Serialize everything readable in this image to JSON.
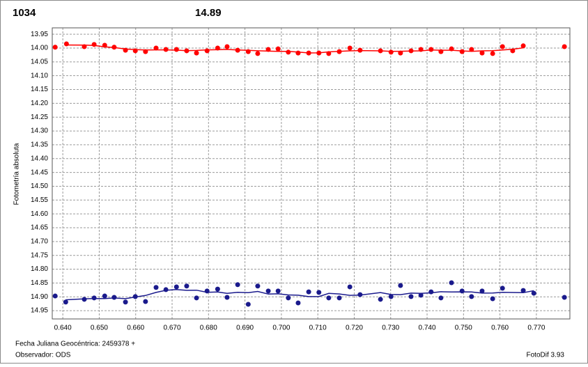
{
  "chart_data": {
    "type": "scatter",
    "title_left": "1034",
    "title_right": "14.89",
    "ylabel": "Fotometría absoluta",
    "xlabel": "Fecha Juliana Geocéntrica: 2459378 +",
    "observer": "Observador: ODS",
    "software": "FotoDif 3.93",
    "xlim": [
      0.6371,
      0.7792
    ],
    "ylim": [
      14.98,
      13.927
    ],
    "grid": true,
    "xticks": [
      {
        "value": 0.64,
        "label": "0.640"
      },
      {
        "value": 0.65,
        "label": "0.650"
      },
      {
        "value": 0.66,
        "label": "0.660"
      },
      {
        "value": 0.67,
        "label": "0.670"
      },
      {
        "value": 0.68,
        "label": "0.680"
      },
      {
        "value": 0.69,
        "label": "0.690"
      },
      {
        "value": 0.7,
        "label": "0.700"
      },
      {
        "value": 0.71,
        "label": "0.710"
      },
      {
        "value": 0.72,
        "label": "0.720"
      },
      {
        "value": 0.73,
        "label": "0.730"
      },
      {
        "value": 0.74,
        "label": "0.740"
      },
      {
        "value": 0.75,
        "label": "0.750"
      },
      {
        "value": 0.76,
        "label": "0.760"
      },
      {
        "value": 0.77,
        "label": "0.770"
      }
    ],
    "yticks": [
      13.95,
      {
        "value": 14,
        "label": "14.00"
      },
      14.05,
      {
        "value": 14.1,
        "label": "14.10"
      },
      14.15,
      {
        "value": 14.2,
        "label": "14.20"
      },
      14.25,
      {
        "value": 14.3,
        "label": "14.30"
      },
      14.35,
      {
        "value": 14.4,
        "label": "14.40"
      },
      14.45,
      {
        "value": 14.5,
        "label": "14.50"
      },
      14.55,
      {
        "value": 14.6,
        "label": "14.60"
      },
      14.65,
      {
        "value": 14.7,
        "label": "14.70"
      },
      14.75,
      {
        "value": 14.8,
        "label": "14.80"
      },
      14.85,
      {
        "value": 14.9,
        "label": "14.90"
      },
      14.95
    ],
    "series": [
      {
        "color": "#ff0000",
        "x": [
          0.6379,
          0.641,
          0.6459,
          0.6486,
          0.6515,
          0.6541,
          0.6572,
          0.6599,
          0.6627,
          0.6656,
          0.6683,
          0.6712,
          0.674,
          0.6767,
          0.6796,
          0.6825,
          0.6851,
          0.688,
          0.6909,
          0.6935,
          0.6964,
          0.6991,
          0.7019,
          0.7046,
          0.7075,
          0.7103,
          0.713,
          0.7159,
          0.7188,
          0.7216,
          0.7272,
          0.7301,
          0.7327,
          0.7356,
          0.7383,
          0.7411,
          0.7438,
          0.7467,
          0.7496,
          0.7522,
          0.7551,
          0.758,
          0.7607,
          0.7635,
          0.7664,
          0.7777
        ],
        "values": [
          13.997,
          13.985,
          13.995,
          13.987,
          13.99,
          13.997,
          14.008,
          14.01,
          14.013,
          14.0,
          14.005,
          14.005,
          14.01,
          14.018,
          14.01,
          14.0,
          13.995,
          14.008,
          14.013,
          14.02,
          14.005,
          14.003,
          14.015,
          14.018,
          14.018,
          14.018,
          14.02,
          14.013,
          14.0,
          14.008,
          14.01,
          14.015,
          14.018,
          14.01,
          14.005,
          14.005,
          14.013,
          14.003,
          14.013,
          14.005,
          14.018,
          14.02,
          13.995,
          14.01,
          13.992,
          13.995
        ]
      },
      {
        "color": "#1a1a8c",
        "x": [
          0.6379,
          0.6408,
          0.6459,
          0.6486,
          0.6515,
          0.6541,
          0.6572,
          0.6599,
          0.6627,
          0.6656,
          0.6683,
          0.6712,
          0.674,
          0.6767,
          0.6796,
          0.6825,
          0.6851,
          0.688,
          0.6909,
          0.6935,
          0.6964,
          0.6991,
          0.7019,
          0.7046,
          0.7075,
          0.7103,
          0.713,
          0.7159,
          0.7188,
          0.7216,
          0.7272,
          0.7301,
          0.7327,
          0.7356,
          0.7383,
          0.7411,
          0.7438,
          0.7467,
          0.7496,
          0.7522,
          0.7551,
          0.758,
          0.7607,
          0.7664,
          0.7693,
          0.7777
        ],
        "values": [
          14.897,
          14.919,
          14.909,
          14.904,
          14.897,
          14.902,
          14.919,
          14.899,
          14.917,
          14.866,
          14.874,
          14.864,
          14.861,
          14.904,
          14.879,
          14.872,
          14.902,
          14.856,
          14.927,
          14.861,
          14.879,
          14.879,
          14.904,
          14.922,
          14.882,
          14.884,
          14.904,
          14.904,
          14.864,
          14.892,
          14.909,
          14.899,
          14.859,
          14.899,
          14.894,
          14.882,
          14.904,
          14.849,
          14.879,
          14.899,
          14.879,
          14.907,
          14.869,
          14.877,
          14.887,
          14.902
        ]
      }
    ]
  }
}
